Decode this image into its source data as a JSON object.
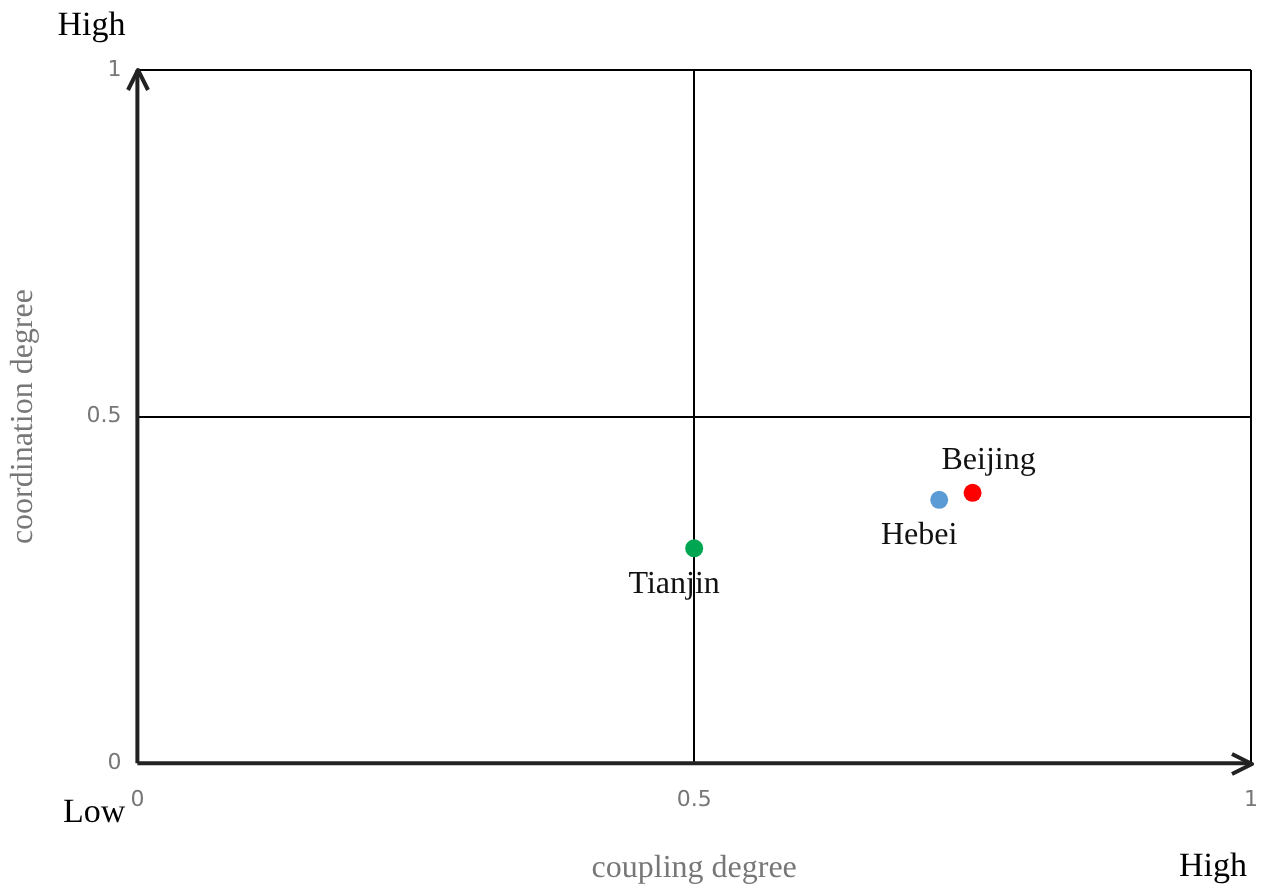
{
  "chart_data": {
    "type": "scatter",
    "xlabel": "coupling degree",
    "ylabel": "coordination degree",
    "annotations": [
      "High",
      "Low",
      "High"
    ],
    "series": [
      {
        "name": "Beijing",
        "color": "#ff0000",
        "x": [
          0.75
        ],
        "values": [
          0.39
        ]
      },
      {
        "name": "Hebei",
        "color": "#5b9bd5",
        "x": [
          0.72
        ],
        "values": [
          0.38
        ]
      },
      {
        "name": "Tianjin",
        "color": "#00a651",
        "x": [
          0.5
        ],
        "values": [
          0.31
        ]
      }
    ],
    "xlim": [
      0,
      1
    ],
    "ylim": [
      0,
      1
    ],
    "xticks": [
      0,
      0.5,
      1
    ],
    "yticks": [
      0,
      0.5,
      1
    ],
    "grid": true,
    "legend": false,
    "marker": "circle"
  }
}
